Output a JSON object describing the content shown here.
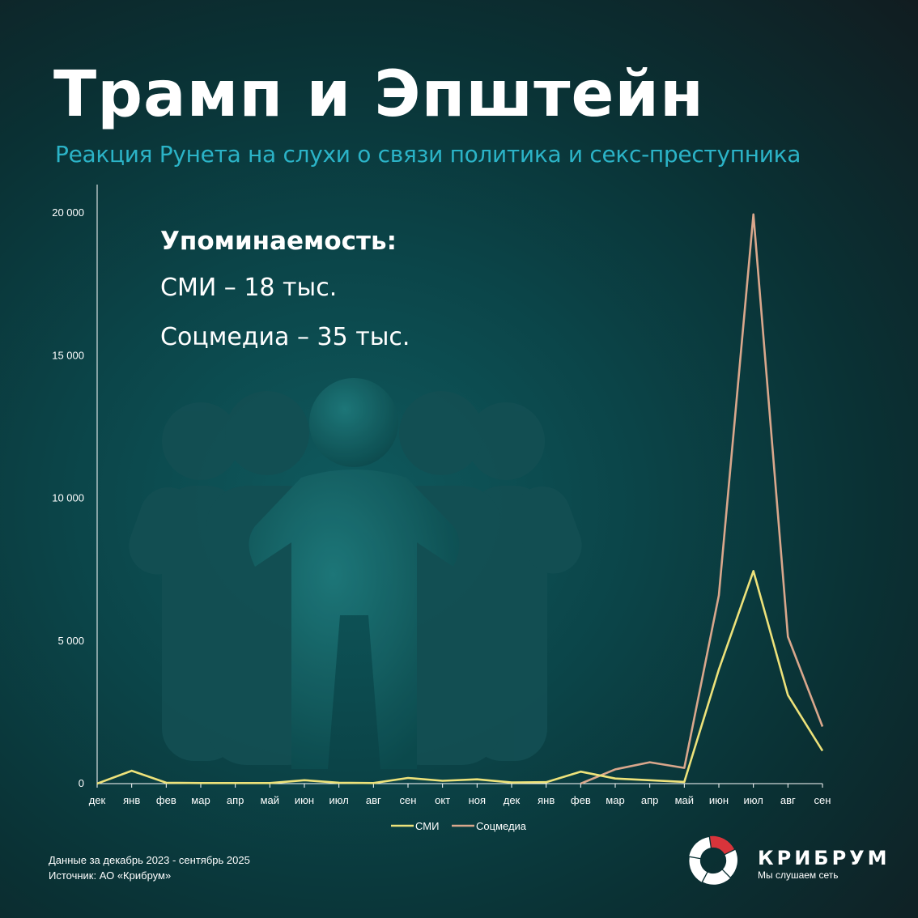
{
  "header": {
    "title": "Трамп и Эпштейн",
    "subtitle": "Реакция Рунета на слухи о связи политика и секс-преступника"
  },
  "mentions": {
    "heading": "Упоминаемость:",
    "media": "СМИ – 18 тыс.",
    "social": "Соцмедиа – 35 тыс."
  },
  "chart_data": {
    "type": "line",
    "title": "",
    "xlabel": "",
    "ylabel": "",
    "ylim": [
      0,
      20000
    ],
    "yticks": [
      0,
      5000,
      10000,
      15000,
      20000
    ],
    "ytick_labels": [
      "0",
      "5 000",
      "10 000",
      "15 000",
      "20 000"
    ],
    "categories": [
      "дек",
      "янв",
      "фев",
      "мар",
      "апр",
      "май",
      "июн",
      "июл",
      "авг",
      "сен",
      "окт",
      "ноя",
      "дек",
      "янв",
      "фев",
      "мар",
      "апр",
      "май",
      "июн",
      "июл",
      "авг",
      "сен"
    ],
    "series": [
      {
        "name": "СМИ",
        "color": "#ede27a",
        "values": [
          0,
          450,
          30,
          20,
          20,
          20,
          120,
          30,
          20,
          200,
          100,
          150,
          40,
          50,
          420,
          180,
          120,
          60,
          4000,
          7450,
          3100,
          1150
        ]
      },
      {
        "name": "Соцмедиа",
        "color": "#d9a78c",
        "start_index": 14,
        "values": [
          null,
          null,
          null,
          null,
          null,
          null,
          null,
          null,
          null,
          null,
          null,
          null,
          null,
          null,
          0,
          500,
          750,
          550,
          6600,
          19950,
          5150,
          2000
        ]
      }
    ],
    "legend": "bottom-center",
    "grid": false
  },
  "footer": {
    "period": "Данные за декабрь 2023  - сентябрь 2025",
    "source": "Источник: АО «Крибрум»"
  },
  "brand": {
    "name": "КРИБРУМ",
    "tagline": "Мы слушаем сеть",
    "accent": "#d8343b"
  }
}
